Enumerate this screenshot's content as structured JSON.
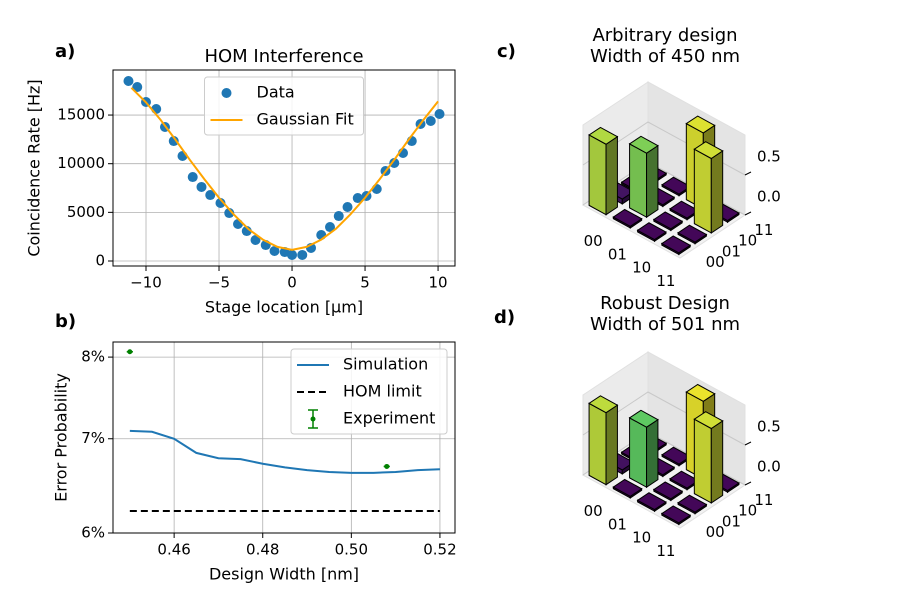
{
  "chart_data": [
    {
      "type": "scatter",
      "panel_label": "a)",
      "title": "HOM Interference",
      "xlabel": "Stage location [μm]",
      "ylabel": "Coincidence Rate [Hz]",
      "xlim": [
        -12.26,
        11.16
      ],
      "ylim": [
        -514,
        19630
      ],
      "xticks": [
        {
          "value": -10,
          "label": "−10"
        },
        {
          "value": -5,
          "label": "−5"
        },
        0,
        5,
        10
      ],
      "yticks": [
        0,
        5000,
        10000,
        15000
      ],
      "grid": true,
      "legend": "upper center",
      "series": [
        {
          "name": "Data",
          "type": "scatter",
          "color": "#1f77b4",
          "x": [
            -11.2,
            -10.6,
            -10.0,
            -9.3,
            -8.7,
            -8.1,
            -7.5,
            -6.8,
            -6.2,
            -5.6,
            -4.9,
            -4.3,
            -3.7,
            -3.1,
            -2.5,
            -1.8,
            -1.2,
            -0.5,
            0,
            0.7,
            1.3,
            2.0,
            2.6,
            3.2,
            3.8,
            4.5,
            5.1,
            5.8,
            6.4,
            7.0,
            7.6,
            8.2,
            8.8,
            9.5,
            10.1
          ],
          "values": [
            18500,
            17880,
            16340,
            15620,
            13770,
            12330,
            10790,
            8630,
            7610,
            6780,
            5960,
            4930,
            3800,
            3080,
            2160,
            1640,
            1030,
            920,
            620,
            620,
            1340,
            2670,
            3490,
            4620,
            5550,
            6470,
            6680,
            7400,
            9250,
            10070,
            11100,
            12330,
            14080,
            14390,
            15110
          ]
        },
        {
          "name": "Gaussian Fit",
          "type": "line",
          "color": "#ffa500",
          "x": [
            -11,
            -10,
            -9,
            -8,
            -7,
            -6,
            -5,
            -4,
            -3,
            -2,
            -1,
            0,
            1,
            2,
            3,
            4,
            5,
            6,
            7,
            8,
            9,
            10
          ],
          "values": [
            17800,
            16300,
            14500,
            12500,
            10400,
            8400,
            6500,
            4800,
            3300,
            2200,
            1450,
            1150,
            1450,
            2200,
            3300,
            4800,
            6500,
            8400,
            10400,
            12500,
            14500,
            16400
          ]
        }
      ]
    },
    {
      "type": "line",
      "panel_label": "b)",
      "xlabel": "Design Width [nm]",
      "ylabel": "Error Probability",
      "xlim": [
        0.4462,
        0.5234
      ],
      "ylim": [
        6,
        8.2
      ],
      "log": true,
      "xticks": [
        0.46,
        0.48,
        {
          "value": 0.5,
          "label": "0.50"
        },
        0.52
      ],
      "yticks": [
        {
          "value": 6,
          "label": "6%"
        },
        {
          "value": 7,
          "label": "7%"
        },
        {
          "value": 8,
          "label": "8%"
        }
      ],
      "grid": true,
      "legend": "upper right",
      "series": [
        {
          "name": "Simulation",
          "type": "line",
          "color": "#1f77b4",
          "x": [
            0.45,
            0.455,
            0.46,
            0.465,
            0.47,
            0.475,
            0.48,
            0.485,
            0.49,
            0.495,
            0.5,
            0.505,
            0.51,
            0.515,
            0.52
          ],
          "values": [
            7.09,
            7.08,
            7.0,
            6.84,
            6.78,
            6.77,
            6.72,
            6.68,
            6.65,
            6.63,
            6.62,
            6.62,
            6.63,
            6.65,
            6.66
          ]
        },
        {
          "name": "HOM limit",
          "type": "line",
          "dash": true,
          "color": "#000000",
          "x": [
            0.45,
            0.52
          ],
          "values": [
            6.22,
            6.22
          ]
        },
        {
          "name": "Experiment",
          "type": "errorbar",
          "color": "#008000",
          "x": [
            0.45,
            0.508
          ],
          "values": [
            8.07,
            6.69
          ],
          "xerr": [
            0.0007,
            0.0007
          ]
        }
      ]
    },
    {
      "type": "bar3d",
      "panel_label": "c)",
      "title": [
        "Arbitrary design",
        "Width of 450 nm"
      ],
      "xcategories": [
        "00",
        "01",
        "10",
        "11"
      ],
      "ycategories": [
        "00",
        "01",
        "10",
        "11"
      ],
      "values": [
        [
          0.88,
          0.06,
          0.02,
          0.02
        ],
        [
          0.02,
          0.8,
          0.02,
          0.02
        ],
        [
          0.02,
          0.02,
          0.02,
          0.95
        ],
        [
          0.02,
          0.02,
          0.93,
          0.02
        ]
      ],
      "zlim": [
        0,
        1
      ],
      "zticks": [
        {
          "value": 0,
          "label": "0.0"
        },
        {
          "value": 0.5,
          "label": "0.5"
        }
      ],
      "colormap": "viridis"
    },
    {
      "type": "bar3d",
      "panel_label": "d)",
      "title": [
        "Robust Design",
        "Width of 501 nm"
      ],
      "xcategories": [
        "00",
        "01",
        "10",
        "11"
      ],
      "ycategories": [
        "00",
        "01",
        "10",
        "11"
      ],
      "values": [
        [
          0.9,
          0.05,
          0.02,
          0.02
        ],
        [
          0.02,
          0.75,
          0.02,
          0.02
        ],
        [
          0.02,
          0.02,
          0.02,
          0.97
        ],
        [
          0.02,
          0.02,
          0.93,
          0.02
        ]
      ],
      "zlim": [
        0,
        1
      ],
      "zticks": [
        {
          "value": 0,
          "label": "0.0"
        },
        {
          "value": 0.5,
          "label": "0.5"
        }
      ],
      "colormap": "viridis"
    }
  ]
}
